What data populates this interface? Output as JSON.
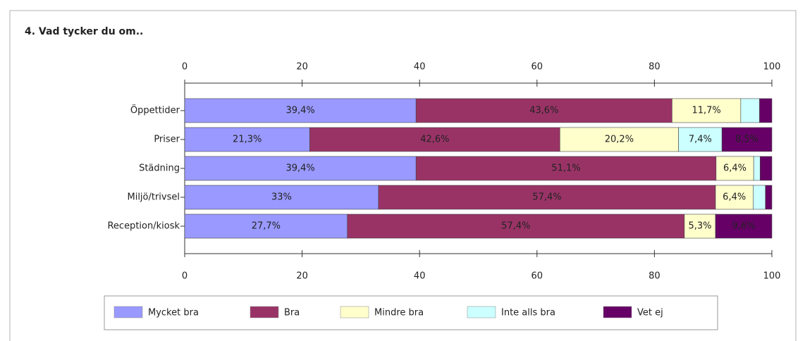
{
  "chart_data": {
    "type": "stacked-bar-horizontal",
    "title": "4. Vad tycker du om..",
    "categories": [
      "Öppettider",
      "Priser",
      "Städning",
      "Miljö/trivsel",
      "Reception/kiosk"
    ],
    "series": [
      {
        "name": "Mycket bra",
        "color": "#9999ff",
        "values": [
          39.4,
          21.3,
          39.4,
          33,
          27.7
        ],
        "value_labels": [
          "39,4%",
          "21,3%",
          "39,4%",
          "33%",
          "27,7%"
        ]
      },
      {
        "name": "Bra",
        "color": "#993366",
        "values": [
          43.6,
          42.6,
          51.1,
          57.4,
          57.4
        ],
        "value_labels": [
          "43,6%",
          "42,6%",
          "51,1%",
          "57,4%",
          "57,4%"
        ]
      },
      {
        "name": "Mindre bra",
        "color": "#ffffcc",
        "values": [
          11.7,
          20.2,
          6.4,
          6.4,
          5.3
        ],
        "value_labels": [
          "11,7%",
          "20,2%",
          "6,4%",
          "6,4%",
          "5,3%"
        ]
      },
      {
        "name": "Inte alls bra",
        "color": "#ccffff",
        "values": [
          3.2,
          7.4,
          1.1,
          2.1,
          0
        ],
        "value_labels": [
          null,
          "7,4%",
          null,
          null,
          null
        ]
      },
      {
        "name": "Vet ej",
        "color": "#660066",
        "values": [
          2.1,
          8.5,
          2,
          1.1,
          9.6
        ],
        "value_labels": [
          null,
          "8,5%",
          null,
          null,
          "9,6%"
        ]
      }
    ],
    "xlim": [
      0,
      100
    ],
    "xticks": [
      0,
      20,
      40,
      60,
      80,
      100
    ],
    "legend": "bottom"
  }
}
